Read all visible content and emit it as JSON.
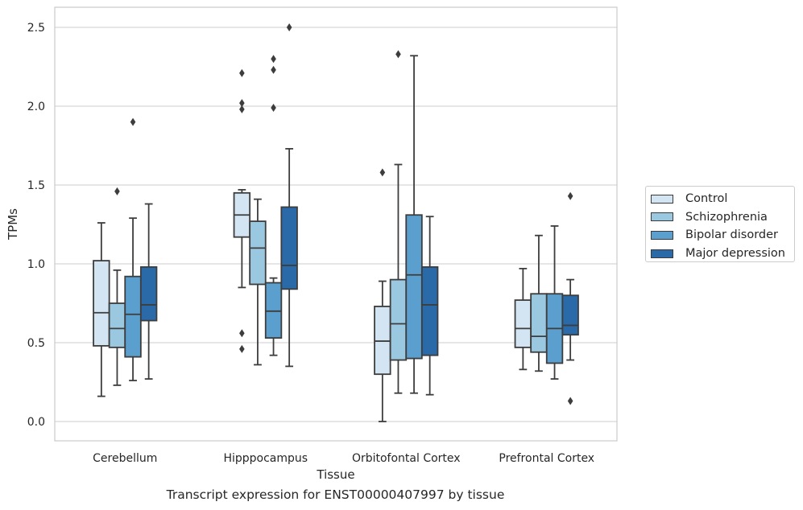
{
  "chart_data": {
    "type": "box",
    "caption": "Transcript expression for ENST00000407997 by tissue",
    "xlabel": "Tissue",
    "ylabel": "TPMs",
    "ylim": [
      -0.12,
      2.63
    ],
    "yticks": [
      "0.0",
      "0.5",
      "1.0",
      "1.5",
      "2.0",
      "2.5"
    ],
    "grid": true,
    "legend_position": "right",
    "categories": [
      "Cerebellum",
      "Hipppocampus",
      "Orbitofontal Cortex",
      "Prefrontal Cortex"
    ],
    "series": [
      {
        "name": "Control",
        "color": "#d3e4f3",
        "boxes": [
          {
            "whislo": 0.16,
            "q1": 0.48,
            "med": 0.69,
            "q3": 1.02,
            "whishi": 1.26,
            "fliers": []
          },
          {
            "whislo": 0.85,
            "q1": 1.17,
            "med": 1.31,
            "q3": 1.45,
            "whishi": 1.47,
            "fliers": [
              2.21,
              2.02,
              1.98,
              0.56,
              0.46
            ]
          },
          {
            "whislo": 0.0,
            "q1": 0.3,
            "med": 0.51,
            "q3": 0.73,
            "whishi": 0.89,
            "fliers": [
              1.58
            ]
          },
          {
            "whislo": 0.33,
            "q1": 0.47,
            "med": 0.59,
            "q3": 0.77,
            "whishi": 0.97,
            "fliers": []
          }
        ]
      },
      {
        "name": "Schizophrenia",
        "color": "#9ac8e0",
        "boxes": [
          {
            "whislo": 0.23,
            "q1": 0.47,
            "med": 0.59,
            "q3": 0.75,
            "whishi": 0.96,
            "fliers": [
              1.46
            ]
          },
          {
            "whislo": 0.36,
            "q1": 0.87,
            "med": 1.1,
            "q3": 1.27,
            "whishi": 1.41,
            "fliers": []
          },
          {
            "whislo": 0.18,
            "q1": 0.39,
            "med": 0.62,
            "q3": 0.9,
            "whishi": 1.63,
            "fliers": [
              2.33
            ]
          },
          {
            "whislo": 0.32,
            "q1": 0.44,
            "med": 0.54,
            "q3": 0.81,
            "whishi": 1.18,
            "fliers": []
          }
        ]
      },
      {
        "name": "Bipolar disorder",
        "color": "#5a9fcd",
        "boxes": [
          {
            "whislo": 0.26,
            "q1": 0.41,
            "med": 0.68,
            "q3": 0.92,
            "whishi": 1.29,
            "fliers": [
              1.9
            ]
          },
          {
            "whislo": 0.42,
            "q1": 0.53,
            "med": 0.7,
            "q3": 0.88,
            "whishi": 0.91,
            "fliers": [
              2.3,
              2.23,
              1.99
            ]
          },
          {
            "whislo": 0.18,
            "q1": 0.4,
            "med": 0.93,
            "q3": 1.31,
            "whishi": 2.32,
            "fliers": []
          },
          {
            "whislo": 0.27,
            "q1": 0.37,
            "med": 0.59,
            "q3": 0.81,
            "whishi": 1.24,
            "fliers": []
          }
        ]
      },
      {
        "name": "Major depression",
        "color": "#2b6aa8",
        "boxes": [
          {
            "whislo": 0.27,
            "q1": 0.64,
            "med": 0.74,
            "q3": 0.98,
            "whishi": 1.38,
            "fliers": []
          },
          {
            "whislo": 0.35,
            "q1": 0.84,
            "med": 0.99,
            "q3": 1.36,
            "whishi": 1.73,
            "fliers": [
              2.5
            ]
          },
          {
            "whislo": 0.17,
            "q1": 0.42,
            "med": 0.74,
            "q3": 0.98,
            "whishi": 1.3,
            "fliers": []
          },
          {
            "whislo": 0.39,
            "q1": 0.55,
            "med": 0.61,
            "q3": 0.8,
            "whishi": 0.9,
            "fliers": [
              1.43,
              0.13
            ]
          }
        ]
      }
    ]
  }
}
